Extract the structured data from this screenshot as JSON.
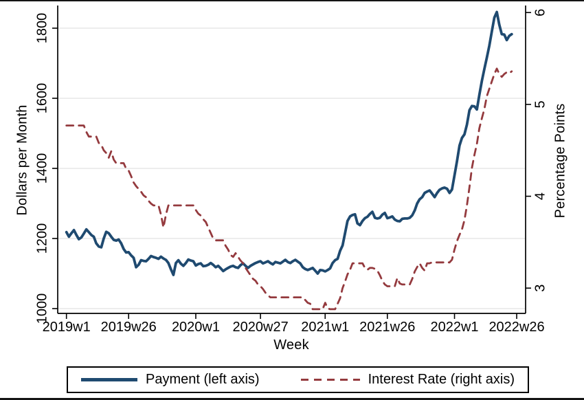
{
  "colors": {
    "payment_line": "#1f4a70",
    "interest_line": "#943a3e",
    "gridline": "#e7e7e7",
    "axis": "#000000",
    "background": "#ffffff",
    "legend_border": "#000000"
  },
  "legend": {
    "payment_label": "Payment (left axis)",
    "interest_label": "Interest Rate (right axis)",
    "position": "bottom"
  },
  "chart_data": {
    "type": "line",
    "title": "",
    "xlabel": "Week",
    "ylabel_left": "Dollars per Month",
    "ylabel_right": "Percentage Points",
    "grid": "horizontal, left-axis ticks only",
    "x_tick_labels": [
      "2019w1",
      "2019w26",
      "2020w1",
      "2020w27",
      "2021w1",
      "2021w26",
      "2022w1",
      "2022w26"
    ],
    "x_tick_weeks": [
      0,
      25,
      52,
      78,
      104,
      129,
      156,
      181
    ],
    "left_ticks": [
      1000,
      1200,
      1400,
      1600,
      1800
    ],
    "right_ticks": [
      3,
      4,
      5,
      6
    ],
    "ylim_left": [
      1000,
      1800
    ],
    "ylim_right": [
      3,
      6
    ],
    "x_unit": "weeks since 2019w1",
    "series": [
      {
        "name": "Payment (left axis)",
        "axis": "left",
        "dash": false,
        "color": "#1f4a70",
        "values": [
          1218,
          1205,
          1215,
          1224,
          1210,
          1198,
          1203,
          1214,
          1226,
          1218,
          1210,
          1205,
          1186,
          1177,
          1175,
          1200,
          1219,
          1215,
          1205,
          1196,
          1194,
          1197,
          1186,
          1170,
          1160,
          1161,
          1152,
          1145,
          1118,
          1125,
          1138,
          1136,
          1135,
          1142,
          1150,
          1147,
          1145,
          1142,
          1148,
          1143,
          1139,
          1130,
          1112,
          1096,
          1130,
          1138,
          1128,
          1122,
          1130,
          1140,
          1137,
          1135,
          1123,
          1127,
          1129,
          1121,
          1122,
          1125,
          1130,
          1125,
          1118,
          1122,
          1115,
          1107,
          1112,
          1116,
          1120,
          1122,
          1118,
          1116,
          1124,
          1129,
          1122,
          1116,
          1122,
          1126,
          1130,
          1133,
          1135,
          1129,
          1132,
          1135,
          1130,
          1126,
          1133,
          1131,
          1129,
          1134,
          1139,
          1133,
          1130,
          1135,
          1139,
          1134,
          1129,
          1118,
          1113,
          1110,
          1113,
          1116,
          1108,
          1100,
          1110,
          1109,
          1106,
          1110,
          1115,
          1130,
          1138,
          1142,
          1165,
          1180,
          1215,
          1250,
          1263,
          1267,
          1269,
          1243,
          1238,
          1250,
          1258,
          1262,
          1270,
          1276,
          1259,
          1257,
          1259,
          1268,
          1273,
          1258,
          1260,
          1263,
          1254,
          1250,
          1249,
          1256,
          1257,
          1257,
          1259,
          1266,
          1280,
          1300,
          1312,
          1318,
          1330,
          1334,
          1337,
          1328,
          1318,
          1330,
          1339,
          1343,
          1345,
          1342,
          1330,
          1340,
          1380,
          1420,
          1465,
          1487,
          1497,
          1525,
          1566,
          1578,
          1577,
          1568,
          1610,
          1650,
          1684,
          1716,
          1750,
          1790,
          1830,
          1846,
          1810,
          1783,
          1782,
          1766,
          1778,
          1783
        ]
      },
      {
        "name": "Interest Rate (right axis)",
        "axis": "right",
        "dash": true,
        "color": "#943a3e",
        "values": [
          4.77,
          4.77,
          4.77,
          4.77,
          4.77,
          4.77,
          4.77,
          4.77,
          4.7,
          4.65,
          4.65,
          4.65,
          4.65,
          4.58,
          4.56,
          4.5,
          4.47,
          4.42,
          4.49,
          4.4,
          4.36,
          4.36,
          4.36,
          4.36,
          4.3,
          4.28,
          4.22,
          4.15,
          4.11,
          4.08,
          4.05,
          4.01,
          3.99,
          3.95,
          3.92,
          3.9,
          3.9,
          3.9,
          3.8,
          3.66,
          3.8,
          3.9,
          3.9,
          3.9,
          3.9,
          3.9,
          3.9,
          3.9,
          3.9,
          3.9,
          3.9,
          3.9,
          3.85,
          3.81,
          3.79,
          3.75,
          3.72,
          3.66,
          3.6,
          3.54,
          3.52,
          3.52,
          3.52,
          3.52,
          3.46,
          3.42,
          3.36,
          3.34,
          3.38,
          3.34,
          3.3,
          3.27,
          3.22,
          3.18,
          3.14,
          3.1,
          3.08,
          3.04,
          3.02,
          2.99,
          2.95,
          2.92,
          2.9,
          2.9,
          2.9,
          2.9,
          2.9,
          2.9,
          2.9,
          2.9,
          2.9,
          2.9,
          2.9,
          2.9,
          2.9,
          2.9,
          2.87,
          2.84,
          2.83,
          2.77,
          2.77,
          2.77,
          2.77,
          2.77,
          2.84,
          2.78,
          2.77,
          2.77,
          2.77,
          2.83,
          2.89,
          3.0,
          3.07,
          3.15,
          3.2,
          3.27,
          3.27,
          3.27,
          3.27,
          3.27,
          3.22,
          3.2,
          3.22,
          3.22,
          3.21,
          3.19,
          3.14,
          3.08,
          3.04,
          3.02,
          3.02,
          3.02,
          3.02,
          3.11,
          3.05,
          3.04,
          3.04,
          3.04,
          3.04,
          3.1,
          3.18,
          3.23,
          3.27,
          3.22,
          3.19,
          3.27,
          3.27,
          3.28,
          3.28,
          3.28,
          3.28,
          3.28,
          3.28,
          3.28,
          3.28,
          3.31,
          3.42,
          3.51,
          3.58,
          3.64,
          3.74,
          3.9,
          4.1,
          4.31,
          4.45,
          4.57,
          4.74,
          4.85,
          4.95,
          5.09,
          5.17,
          5.25,
          5.33,
          5.39,
          5.33,
          5.3,
          5.33,
          5.35,
          5.34,
          5.36
        ]
      }
    ]
  }
}
